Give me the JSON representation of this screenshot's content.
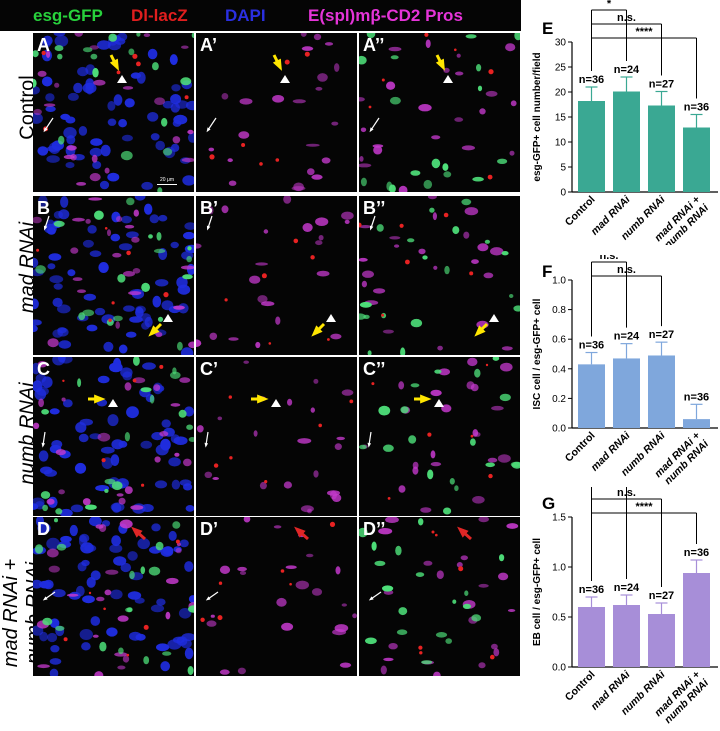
{
  "header": {
    "labels": [
      {
        "text": "esg-GFP",
        "color": "#28d13c"
      },
      {
        "text": "Dl-lacZ",
        "color": "#e01e1e"
      },
      {
        "text": "DAPI",
        "color": "#2a2fe0"
      },
      {
        "text": "E(spl)mβ-CD2 Pros",
        "color": "#e534d8"
      }
    ]
  },
  "rows": [
    {
      "label": "Control",
      "italic": false
    },
    {
      "label": "mad RNAi",
      "italic": true
    },
    {
      "label": "numb RNAi",
      "italic": true
    },
    {
      "label_line1": "mad RNAi +",
      "label_line2": "numb RNAi",
      "italic": true
    }
  ],
  "panels": [
    "A",
    "A’",
    "A’’",
    "B",
    "B’",
    "B’’",
    "C",
    "C’",
    "C’’",
    "D",
    "D’",
    "D’’"
  ],
  "scalebar": "20 μm",
  "chart_data": [
    {
      "panel": "E",
      "type": "bar",
      "categories": [
        "Control",
        "mad RNAi",
        "numb RNAi",
        "mad RNAi + numb RNAi"
      ],
      "values": [
        18.2,
        20.1,
        17.3,
        12.9
      ],
      "errors": [
        2.8,
        2.9,
        2.8,
        2.6
      ],
      "n_labels": [
        "n=36",
        "n=24",
        "n=27",
        "n=36"
      ],
      "ylabel": "esg-GFP+ cell number/field",
      "ylim": [
        0,
        30
      ],
      "yticks": [
        0,
        5,
        10,
        15,
        20,
        25,
        30
      ],
      "color": "#3aa893",
      "significance": [
        "*",
        "n.s.",
        "****"
      ]
    },
    {
      "panel": "F",
      "type": "bar",
      "categories": [
        "Control",
        "mad RNAi",
        "numb RNAi",
        "mad RNAi + numb RNAi"
      ],
      "values": [
        0.43,
        0.47,
        0.49,
        0.06
      ],
      "errors": [
        0.08,
        0.1,
        0.09,
        0.1
      ],
      "n_labels": [
        "n=36",
        "n=24",
        "n=27",
        "n=36"
      ],
      "ylabel": "ISC cell / esg-GFP+ cell",
      "ylim": [
        0,
        1.0
      ],
      "yticks": [
        0.0,
        0.2,
        0.4,
        0.6,
        0.8,
        1.0
      ],
      "color": "#7fa7dc",
      "significance": [
        "n.s.",
        "n.s."
      ]
    },
    {
      "panel": "G",
      "type": "bar",
      "categories": [
        "Control",
        "mad RNAi",
        "numb RNAi",
        "mad RNAi + numb RNAi"
      ],
      "values": [
        0.6,
        0.62,
        0.53,
        0.94
      ],
      "errors": [
        0.1,
        0.1,
        0.11,
        0.13
      ],
      "n_labels": [
        "n=36",
        "n=24",
        "n=27",
        "n=36"
      ],
      "ylabel": "EB cell / esg-GFP+ cell",
      "ylim": [
        0,
        1.5
      ],
      "yticks": [
        0.0,
        0.5,
        1.0,
        1.5
      ],
      "color": "#a78ed8",
      "significance": [
        "n.s.",
        "n.s.",
        "****"
      ]
    }
  ]
}
